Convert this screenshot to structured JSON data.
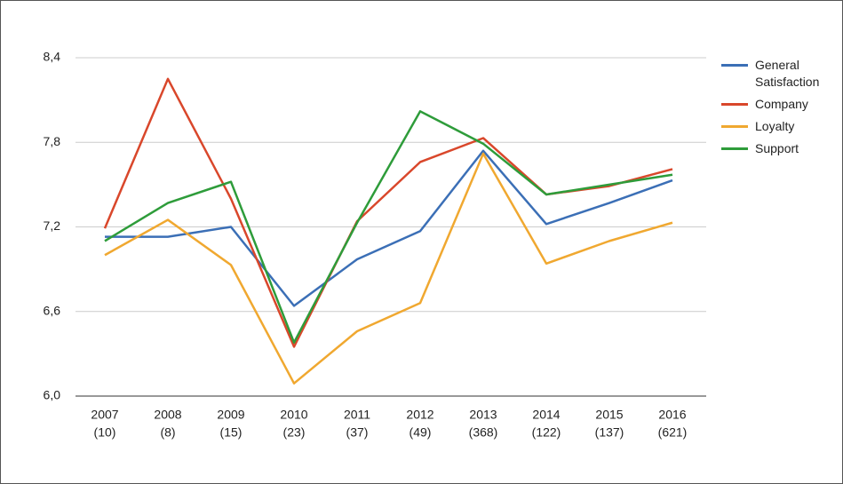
{
  "chart_data": {
    "type": "line",
    "categories": [
      [
        "2007",
        "(10)"
      ],
      [
        "2008",
        "(8)"
      ],
      [
        "2009",
        "(15)"
      ],
      [
        "2010",
        "(23)"
      ],
      [
        "2011",
        "(37)"
      ],
      [
        "2012",
        "(49)"
      ],
      [
        "2013",
        "(368)"
      ],
      [
        "2014",
        "(122)"
      ],
      [
        "2015",
        "(137)"
      ],
      [
        "2016",
        "(621)"
      ]
    ],
    "series": [
      {
        "name": "General Satisfaction",
        "color": "#3b6fb6",
        "values": [
          7.13,
          7.13,
          7.2,
          6.64,
          6.97,
          7.17,
          7.74,
          7.22,
          7.37,
          7.53
        ]
      },
      {
        "name": "Company",
        "color": "#d9472b",
        "values": [
          7.19,
          8.25,
          7.4,
          6.35,
          7.24,
          7.66,
          7.83,
          7.43,
          7.49,
          7.61
        ]
      },
      {
        "name": "Loyalty",
        "color": "#f0a830",
        "values": [
          7.0,
          7.25,
          6.93,
          6.09,
          6.46,
          6.66,
          7.72,
          6.94,
          7.1,
          7.23
        ]
      },
      {
        "name": "Support",
        "color": "#2e9c3a",
        "values": [
          7.1,
          7.37,
          7.52,
          6.38,
          7.23,
          8.02,
          7.79,
          7.43,
          7.5,
          7.57
        ]
      }
    ],
    "ylim": [
      6.0,
      8.4
    ],
    "yticks": [
      {
        "value": 6.0,
        "label": "6,0"
      },
      {
        "value": 6.6,
        "label": "6,6"
      },
      {
        "value": 7.2,
        "label": "7,2"
      },
      {
        "value": 7.8,
        "label": "7,8"
      },
      {
        "value": 8.4,
        "label": "8,4"
      }
    ],
    "grid": true,
    "legend": "right"
  }
}
